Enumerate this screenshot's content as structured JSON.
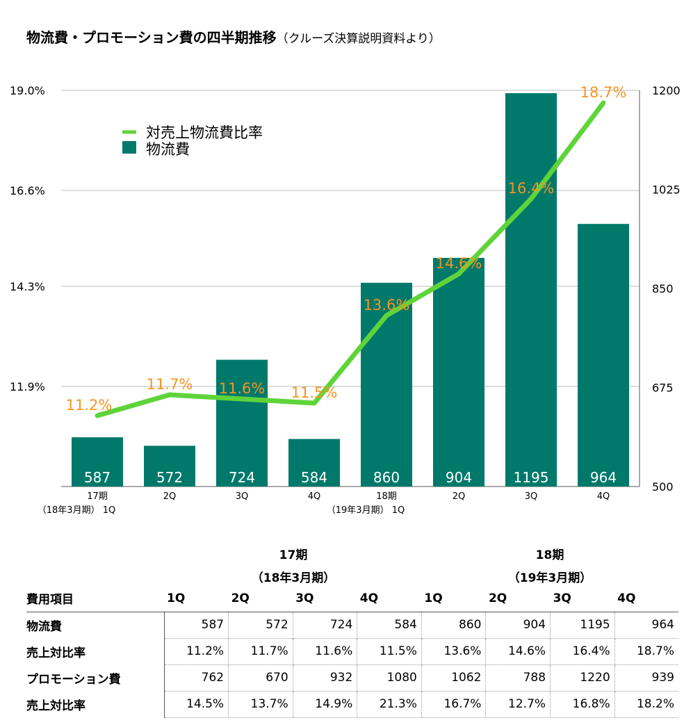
{
  "title": {
    "main": "物流費・プロモーション費の四半期推移",
    "sub": "（クルーズ決算説明資料より）"
  },
  "colors": {
    "bar": "#00796b",
    "line": "#5fd43a",
    "label": "#f7941d",
    "grid": "#bbbbbb"
  },
  "chart_data": {
    "type": "bar",
    "categories": [
      [
        "17期",
        "（18年3月期） 1Q"
      ],
      [
        "2Q"
      ],
      [
        "3Q"
      ],
      [
        "4Q"
      ],
      [
        "18期",
        "（19年3月期） 1Q"
      ],
      [
        "2Q"
      ],
      [
        "3Q"
      ],
      [
        "4Q"
      ]
    ],
    "series": [
      {
        "name": "物流費",
        "type": "bar",
        "axis": "right",
        "values": [
          587,
          572,
          724,
          584,
          860,
          904,
          1195,
          964
        ]
      },
      {
        "name": "対売上物流費比率",
        "type": "line",
        "axis": "left",
        "values": [
          11.2,
          11.7,
          11.6,
          11.5,
          13.6,
          14.6,
          16.4,
          18.7
        ]
      }
    ],
    "line_labels": [
      "11.2%",
      "11.7%",
      "11.6%",
      "11.5%",
      "13.6%",
      "14.6%",
      "16.4%",
      "18.7%"
    ],
    "left_axis": {
      "range": [
        9.5,
        19.0
      ],
      "ticks": [
        "19.0%",
        "16.6%",
        "14.3%",
        "11.9%"
      ],
      "tick_values": [
        19.0,
        16.6,
        14.3,
        11.9
      ]
    },
    "right_axis": {
      "range": [
        500,
        1200
      ],
      "ticks": [
        "1200",
        "1025",
        "850",
        "675",
        "500"
      ],
      "tick_values": [
        1200,
        1025,
        850,
        675,
        500
      ]
    },
    "legend": {
      "position": "top-left",
      "items": [
        "対売上物流費比率",
        "物流費"
      ]
    },
    "grid": true
  },
  "table": {
    "groups": [
      {
        "line1": "17期",
        "line2": "（18年3月期）"
      },
      {
        "line1": "18期",
        "line2": "（19年3月期）"
      }
    ],
    "header": [
      "費用項目",
      "1Q",
      "2Q",
      "3Q",
      "4Q",
      "1Q",
      "2Q",
      "3Q",
      "4Q"
    ],
    "rows": [
      {
        "label": "物流費",
        "values": [
          "587",
          "572",
          "724",
          "584",
          "860",
          "904",
          "1195",
          "964"
        ]
      },
      {
        "label": "売上対比率",
        "values": [
          "11.2%",
          "11.7%",
          "11.6%",
          "11.5%",
          "13.6%",
          "14.6%",
          "16.4%",
          "18.7%"
        ]
      },
      {
        "label": "プロモーション費",
        "values": [
          "762",
          "670",
          "932",
          "1080",
          "1062",
          "788",
          "1220",
          "939"
        ]
      },
      {
        "label": "売上対比率",
        "values": [
          "14.5%",
          "13.7%",
          "14.9%",
          "21.3%",
          "16.7%",
          "12.7%",
          "16.8%",
          "18.2%"
        ]
      }
    ]
  }
}
